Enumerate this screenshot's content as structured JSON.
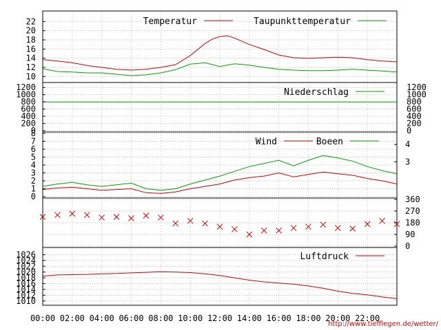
{
  "chart_data": {
    "type": "line",
    "x_ticks": [
      "00:00",
      "02:00",
      "04:00",
      "06:00",
      "08:00",
      "10:00",
      "12:00",
      "14:00",
      "16:00",
      "18:00",
      "20:00",
      "22:00"
    ],
    "x_range_hours": [
      0,
      24
    ],
    "credit": "http://www.tiefflegen.de/wetter/",
    "colors": {
      "red": "#cc0000",
      "green": "#00a000",
      "grid": "#a0a0a0"
    },
    "panels": [
      {
        "name": "temperature",
        "ylim": [
          9,
          24
        ],
        "y_ticks": [
          "22",
          "20",
          "18",
          "16",
          "14",
          "12",
          "10"
        ],
        "y_tick_values": [
          22,
          20,
          18,
          16,
          14,
          12,
          10
        ],
        "series": [
          {
            "name": "Temperatur",
            "color": "red",
            "x": [
              0,
              1,
              2,
              3,
              4,
              5,
              6,
              7,
              8,
              9,
              10,
              11,
              11.5,
              12,
              12.5,
              13,
              14,
              15,
              16,
              17,
              18,
              19,
              20,
              21,
              22,
              23,
              24
            ],
            "y": [
              13.7,
              13.4,
              13.0,
              12.4,
              12.0,
              11.6,
              11.4,
              11.6,
              12.0,
              12.6,
              14.6,
              17.2,
              18.2,
              18.7,
              18.9,
              18.4,
              17.0,
              15.9,
              14.7,
              14.1,
              14.0,
              14.1,
              14.2,
              14.1,
              13.7,
              13.4,
              13.2
            ]
          },
          {
            "name": "Taupunkttemperatur",
            "color": "green",
            "x": [
              0,
              1,
              2,
              3,
              4,
              5,
              6,
              7,
              8,
              9,
              10,
              11,
              12,
              13,
              14,
              15,
              16,
              17,
              18,
              19,
              20,
              21,
              22,
              23,
              24
            ],
            "y": [
              11.7,
              11.1,
              11.0,
              10.8,
              10.8,
              10.5,
              10.2,
              10.4,
              10.8,
              11.5,
              12.7,
              13.0,
              12.2,
              12.8,
              12.5,
              12.0,
              11.6,
              11.4,
              11.3,
              11.3,
              11.4,
              11.6,
              11.4,
              11.2,
              11.0
            ]
          }
        ]
      },
      {
        "name": "precipitation",
        "ylim": [
          0,
          1300
        ],
        "y_ticks": [
          "1200",
          "1000",
          "800",
          "600",
          "400",
          "200",
          "0"
        ],
        "y_tick_values": [
          1200,
          1000,
          800,
          600,
          400,
          200,
          0
        ],
        "series": [
          {
            "name": "Niederschlag",
            "color": "green",
            "x": [
              0,
              24
            ],
            "y": [
              800,
              800
            ]
          }
        ]
      },
      {
        "name": "wind",
        "ylim": [
          0,
          8
        ],
        "y_ticks_left": [
          "8",
          "7",
          "6",
          "5",
          "4",
          "3",
          "2",
          "1",
          "0"
        ],
        "y_tick_values_left": [
          8,
          7,
          6,
          5,
          4,
          3,
          2,
          1,
          0
        ],
        "y_ticks_right": [
          "4",
          "3"
        ],
        "y_tick_values_right": [
          6.6,
          4.4
        ],
        "series": [
          {
            "name": "Wind",
            "color": "red",
            "x": [
              0,
              1,
              2,
              3,
              4,
              5,
              6,
              7,
              8,
              9,
              10,
              11,
              12,
              13,
              14,
              15,
              16,
              17,
              18,
              19,
              20,
              21,
              22,
              23,
              24
            ],
            "y": [
              0.9,
              1.1,
              1.2,
              1.0,
              0.8,
              0.9,
              1.0,
              0.5,
              0.4,
              0.6,
              1.0,
              1.3,
              1.6,
              2.1,
              2.4,
              2.6,
              3.0,
              2.5,
              2.8,
              3.1,
              2.9,
              2.7,
              2.3,
              2.0,
              1.6
            ]
          },
          {
            "name": "Boeen",
            "color": "green",
            "x": [
              0,
              1,
              2,
              3,
              4,
              5,
              6,
              7,
              8,
              9,
              10,
              11,
              12,
              13,
              14,
              15,
              16,
              17,
              18,
              19,
              20,
              21,
              22,
              23,
              24
            ],
            "y": [
              1.3,
              1.6,
              1.8,
              1.5,
              1.3,
              1.5,
              1.7,
              1.0,
              0.8,
              1.0,
              1.6,
              2.1,
              2.6,
              3.2,
              3.8,
              4.2,
              4.6,
              3.9,
              4.6,
              5.2,
              4.9,
              4.5,
              3.8,
              3.3,
              2.9
            ]
          }
        ]
      },
      {
        "name": "wind_direction",
        "ylim": [
          0,
          360
        ],
        "y_ticks_right": [
          "360",
          "270",
          "180",
          "90",
          "0"
        ],
        "y_tick_values_right": [
          360,
          270,
          180,
          90,
          0
        ],
        "series": [
          {
            "name": "",
            "color": "red",
            "marker": "x",
            "x": [
              0,
              1,
              2,
              3,
              4,
              5,
              6,
              7,
              8,
              9,
              10,
              11,
              12,
              13,
              14,
              15,
              16,
              17,
              18,
              19,
              20,
              21,
              22,
              23,
              24
            ],
            "y": [
              225,
              240,
              250,
              240,
              220,
              225,
              215,
              235,
              220,
              175,
              195,
              175,
              150,
              130,
              90,
              120,
              120,
              140,
              150,
              165,
              140,
              135,
              170,
              195,
              170
            ]
          }
        ]
      },
      {
        "name": "pressure",
        "ylim": [
          1009,
          1028
        ],
        "y_ticks": [
          "1026",
          "1024",
          "1022",
          "1020",
          "1018",
          "1016",
          "1014",
          "1012",
          "1010"
        ],
        "y_tick_values": [
          1026,
          1024,
          1022,
          1020,
          1018,
          1016,
          1014,
          1012,
          1010
        ],
        "series": [
          {
            "name": "Luftdruck",
            "color": "red",
            "x": [
              0,
              1,
              2,
              3,
              4,
              5,
              6,
              7,
              8,
              9,
              10,
              11,
              12,
              13,
              14,
              15,
              16,
              17,
              18,
              19,
              20,
              21,
              22,
              23,
              24
            ],
            "y": [
              1018.6,
              1019.0,
              1019.1,
              1019.2,
              1019.4,
              1019.5,
              1019.7,
              1019.9,
              1020.1,
              1020.0,
              1019.8,
              1019.4,
              1018.8,
              1018.0,
              1017.2,
              1016.6,
              1016.2,
              1015.8,
              1015.2,
              1014.4,
              1013.4,
              1012.6,
              1012.1,
              1011.4,
              1010.8
            ]
          }
        ]
      }
    ]
  }
}
